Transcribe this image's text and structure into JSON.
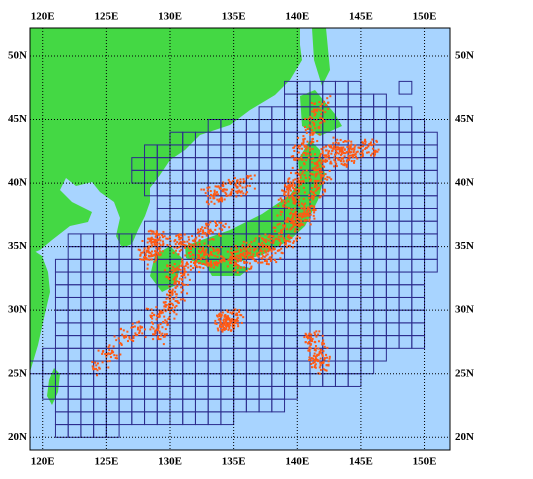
{
  "map": {
    "xlim": [
      119,
      152
    ],
    "ylim": [
      19,
      52.2
    ],
    "xticks": [
      {
        "value": 120,
        "label": "120E"
      },
      {
        "value": 125,
        "label": "125E"
      },
      {
        "value": 130,
        "label": "130E"
      },
      {
        "value": 135,
        "label": "135E"
      },
      {
        "value": 140,
        "label": "140E"
      },
      {
        "value": 145,
        "label": "145E"
      },
      {
        "value": 150,
        "label": "150E"
      }
    ],
    "yticks": [
      {
        "value": 20,
        "label": "20N"
      },
      {
        "value": 25,
        "label": "25N"
      },
      {
        "value": 30,
        "label": "30N"
      },
      {
        "value": 35,
        "label": "35N"
      },
      {
        "value": 40,
        "label": "40N"
      },
      {
        "value": 45,
        "label": "45N"
      },
      {
        "value": 50,
        "label": "50N"
      }
    ],
    "grid": true
  }
}
